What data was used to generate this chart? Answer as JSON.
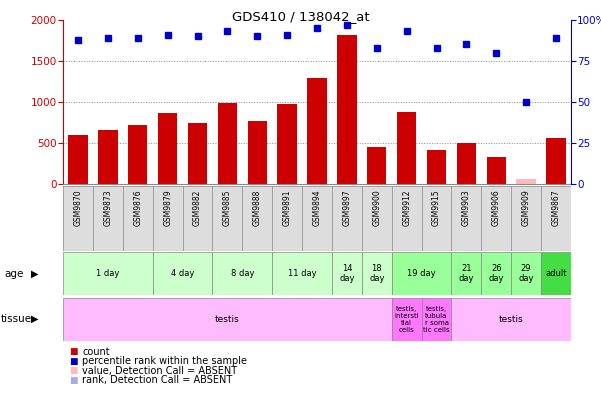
{
  "title": "GDS410 / 138042_at",
  "samples": [
    "GSM9870",
    "GSM9873",
    "GSM9876",
    "GSM9879",
    "GSM9882",
    "GSM9885",
    "GSM9888",
    "GSM9891",
    "GSM9894",
    "GSM9897",
    "GSM9900",
    "GSM9912",
    "GSM9915",
    "GSM9903",
    "GSM9906",
    "GSM9909",
    "GSM9867"
  ],
  "counts": [
    600,
    660,
    715,
    865,
    740,
    990,
    770,
    975,
    1290,
    1820,
    450,
    880,
    415,
    500,
    335,
    65,
    560
  ],
  "percentiles": [
    88,
    89,
    89,
    91,
    90,
    93,
    90,
    91,
    95,
    97,
    83,
    93,
    83,
    85,
    80,
    50,
    89
  ],
  "absent_value_idx": [
    15
  ],
  "absent_rank_idx": [],
  "ylim_left": [
    0,
    2000
  ],
  "ylim_right": [
    0,
    100
  ],
  "yticks_left": [
    0,
    500,
    1000,
    1500,
    2000
  ],
  "yticks_right": [
    0,
    25,
    50,
    75,
    100
  ],
  "age_groups": [
    {
      "label": "1 day",
      "start": 0,
      "end": 3,
      "color": "#ccffcc"
    },
    {
      "label": "4 day",
      "start": 3,
      "end": 5,
      "color": "#ccffcc"
    },
    {
      "label": "8 day",
      "start": 5,
      "end": 7,
      "color": "#ccffcc"
    },
    {
      "label": "11 day",
      "start": 7,
      "end": 9,
      "color": "#ccffcc"
    },
    {
      "label": "14\nday",
      "start": 9,
      "end": 10,
      "color": "#ccffcc"
    },
    {
      "label": "18\nday",
      "start": 10,
      "end": 11,
      "color": "#ccffcc"
    },
    {
      "label": "19 day",
      "start": 11,
      "end": 13,
      "color": "#99ff99"
    },
    {
      "label": "21\nday",
      "start": 13,
      "end": 14,
      "color": "#99ff99"
    },
    {
      "label": "26\nday",
      "start": 14,
      "end": 15,
      "color": "#99ff99"
    },
    {
      "label": "29\nday",
      "start": 15,
      "end": 16,
      "color": "#99ff99"
    },
    {
      "label": "adult",
      "start": 16,
      "end": 17,
      "color": "#44dd44"
    }
  ],
  "tissue_groups": [
    {
      "label": "testis",
      "start": 0,
      "end": 11,
      "color": "#ffbbff"
    },
    {
      "label": "testis,\nintersti\ntial\ncells",
      "start": 11,
      "end": 12,
      "color": "#ff77ff"
    },
    {
      "label": "testis,\ntubula\nr soma\ntic cells",
      "start": 12,
      "end": 13,
      "color": "#ff77ff"
    },
    {
      "label": "testis",
      "start": 13,
      "end": 17,
      "color": "#ffbbff"
    }
  ],
  "bar_color": "#cc0000",
  "dot_color": "#0000cc",
  "absent_bar_color": "#ffbbbb",
  "absent_dot_color": "#aaaadd",
  "grid_color": "#888888",
  "bg_color": "#ffffff",
  "left_axis_color": "#cc0000",
  "right_axis_color": "#0000cc",
  "sample_bg_color": "#dddddd",
  "sample_border_color": "#888888"
}
